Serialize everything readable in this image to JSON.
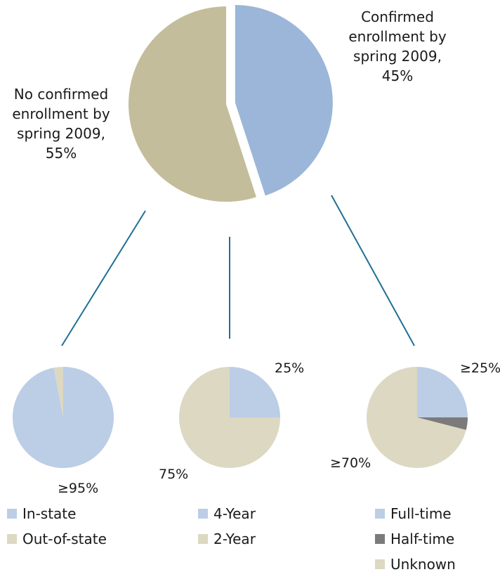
{
  "colors": {
    "main_confirmed": "#9bb6d8",
    "main_unconfirmed": "#c4bd9b",
    "light_blue": "#bccde6",
    "light_tan": "#ddd8c2",
    "gray": "#7b7b7b",
    "connector": "#1f6f93"
  },
  "chart_data": [
    {
      "type": "pie",
      "slices": [
        {
          "label": "Confirmed enrollment by spring 2009",
          "value": 45
        },
        {
          "label": "No confirmed enrollment by spring 2009",
          "value": 55
        }
      ]
    },
    {
      "type": "pie",
      "legend": [
        "In-state",
        "Out-of-state"
      ],
      "slices": [
        {
          "label": "In-state",
          "value": 97
        },
        {
          "label": "Out-of-state",
          "value": 3
        }
      ],
      "data_labels": [
        "≥95%"
      ]
    },
    {
      "type": "pie",
      "legend": [
        "4-Year",
        "2-Year"
      ],
      "slices": [
        {
          "label": "4-Year",
          "value": 25
        },
        {
          "label": "2-Year",
          "value": 75
        }
      ],
      "data_labels": [
        "25%",
        "75%"
      ]
    },
    {
      "type": "pie",
      "legend": [
        "Full-time",
        "Half-time",
        "Unknown"
      ],
      "slices": [
        {
          "label": "Full-time",
          "value": 25
        },
        {
          "label": "Half-time",
          "value": 4
        },
        {
          "label": "Unknown",
          "value": 71
        }
      ],
      "data_labels": [
        "≥25%",
        "≥70%"
      ]
    }
  ],
  "labels": {
    "confirmed": {
      "line1": "Confirmed",
      "line2": "enrollment by",
      "line3": "spring 2009,",
      "pct": "45%"
    },
    "unconfirmed": {
      "line1": "No confirmed",
      "line2": "enrollment by",
      "line3": "spring 2009,",
      "pct": "55%"
    }
  },
  "legends": {
    "residency": [
      "In-state",
      "Out-of-state"
    ],
    "institution": [
      "4-Year",
      "2-Year"
    ],
    "intensity": [
      "Full-time",
      "Half-time",
      "Unknown"
    ]
  }
}
